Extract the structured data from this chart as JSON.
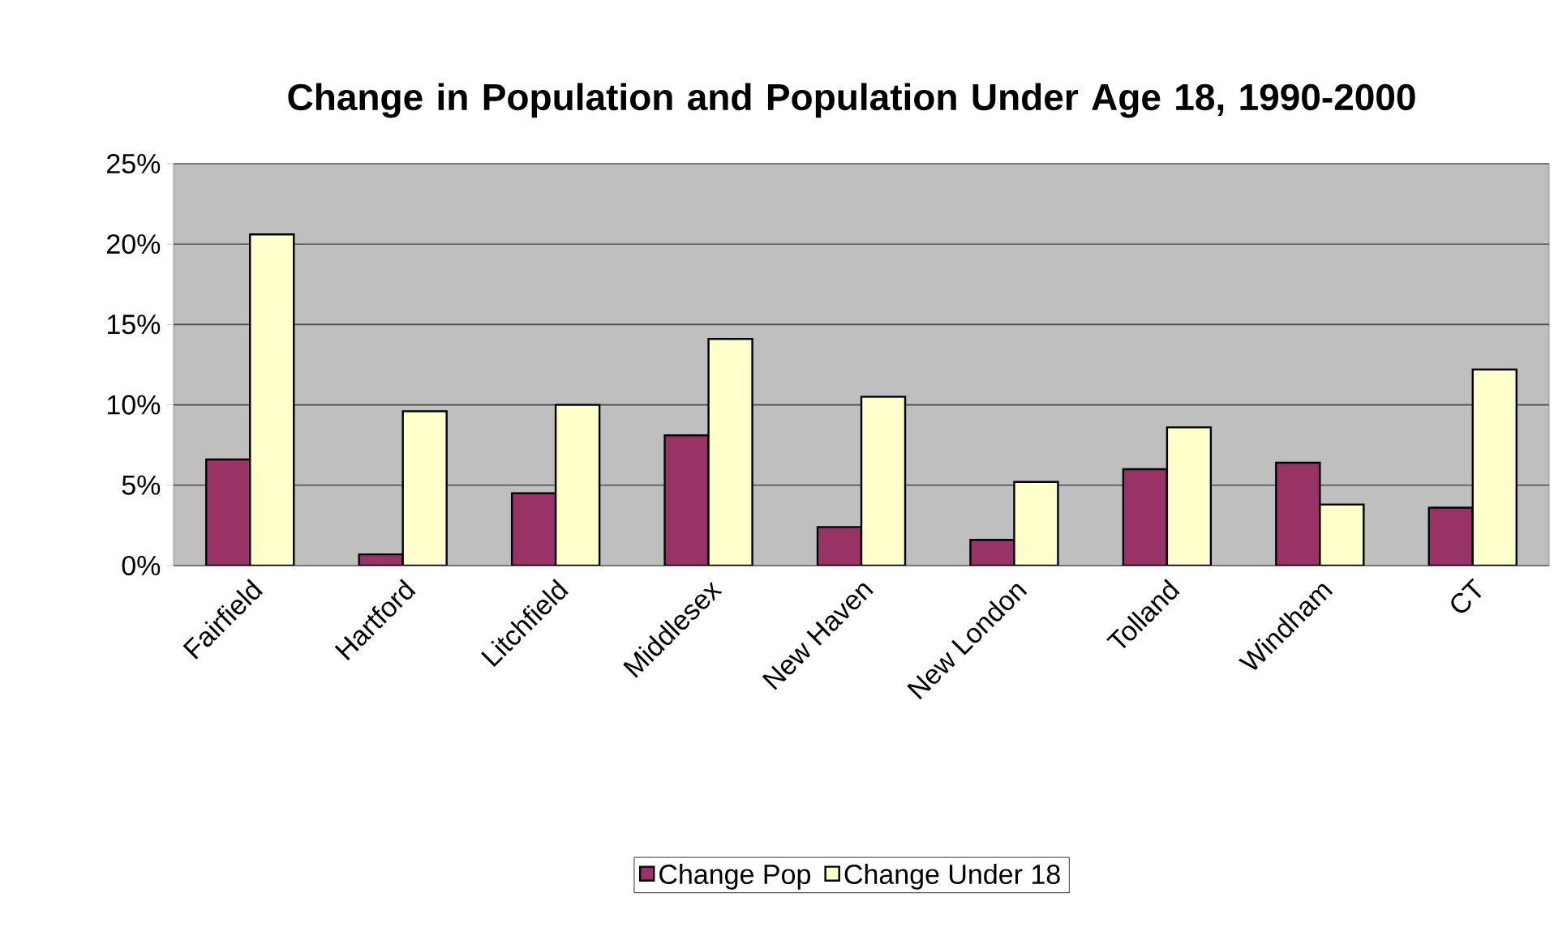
{
  "chart_data": {
    "type": "bar",
    "title": "Change in Population and Population Under Age 18, 1990-2000",
    "categories": [
      "Fairfield",
      "Hartford",
      "Litchfield",
      "Middlesex",
      "New Haven",
      "New London",
      "Tolland",
      "Windham",
      "CT"
    ],
    "series": [
      {
        "name": "Change Pop",
        "color": "#993366",
        "values": [
          6.6,
          0.7,
          4.5,
          8.1,
          2.4,
          1.6,
          6.0,
          6.4,
          3.6
        ]
      },
      {
        "name": "Change Under 18",
        "color": "#ffffcc",
        "values": [
          20.6,
          9.6,
          10.0,
          14.1,
          10.5,
          5.2,
          8.6,
          3.8,
          12.2
        ]
      }
    ],
    "ylim": [
      0,
      25
    ],
    "yticks": [
      {
        "value": 0,
        "label": "0%"
      },
      {
        "value": 5,
        "label": "5%"
      },
      {
        "value": 10,
        "label": "10%"
      },
      {
        "value": 15,
        "label": "15%"
      },
      {
        "value": 20,
        "label": "20%"
      },
      {
        "value": 25,
        "label": "25%"
      }
    ],
    "grid": "y",
    "legend": "bottom"
  }
}
